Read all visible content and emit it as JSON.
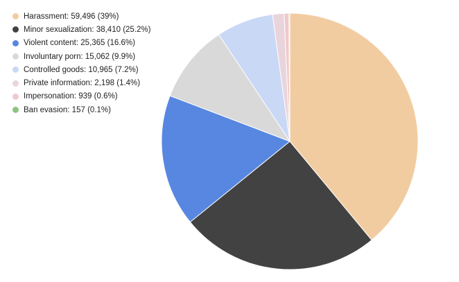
{
  "chart_data": {
    "type": "pie",
    "title": "",
    "legend_position": "top-left",
    "start_angle": "top, clockwise",
    "slices": [
      {
        "label": "Harassment",
        "value": 59496,
        "percent": "39%",
        "legend_text": "Harassment: 59,496 (39%)",
        "color": "#F2CCA1"
      },
      {
        "label": "Minor sexualization",
        "value": 38410,
        "percent": "25.2%",
        "legend_text": "Minor sexualization: 38,410 (25.2%)",
        "color": "#424242"
      },
      {
        "label": "Violent content",
        "value": 25365,
        "percent": "16.6%",
        "legend_text": "Violent content: 25,365 (16.6%)",
        "color": "#5787E0"
      },
      {
        "label": "Involuntary porn",
        "value": 15062,
        "percent": "9.9%",
        "legend_text": "Involuntary porn: 15,062 (9.9%)",
        "color": "#D9D9D9"
      },
      {
        "label": "Controlled goods",
        "value": 10965,
        "percent": "7.2%",
        "legend_text": "Controlled goods: 10,965 (7.2%)",
        "color": "#C9D8F5"
      },
      {
        "label": "Private information",
        "value": 2198,
        "percent": "1.4%",
        "legend_text": "Private information: 2,198 (1.4%)",
        "color": "#EAD4DC"
      },
      {
        "label": "Impersonation",
        "value": 939,
        "percent": "0.6%",
        "legend_text": "Impersonation: 939 (0.6%)",
        "color": "#F0C9CC"
      },
      {
        "label": "Ban evasion",
        "value": 157,
        "percent": "0.1%",
        "legend_text": "Ban evasion: 157 (0.1%)",
        "color": "#8DC47E"
      }
    ]
  }
}
